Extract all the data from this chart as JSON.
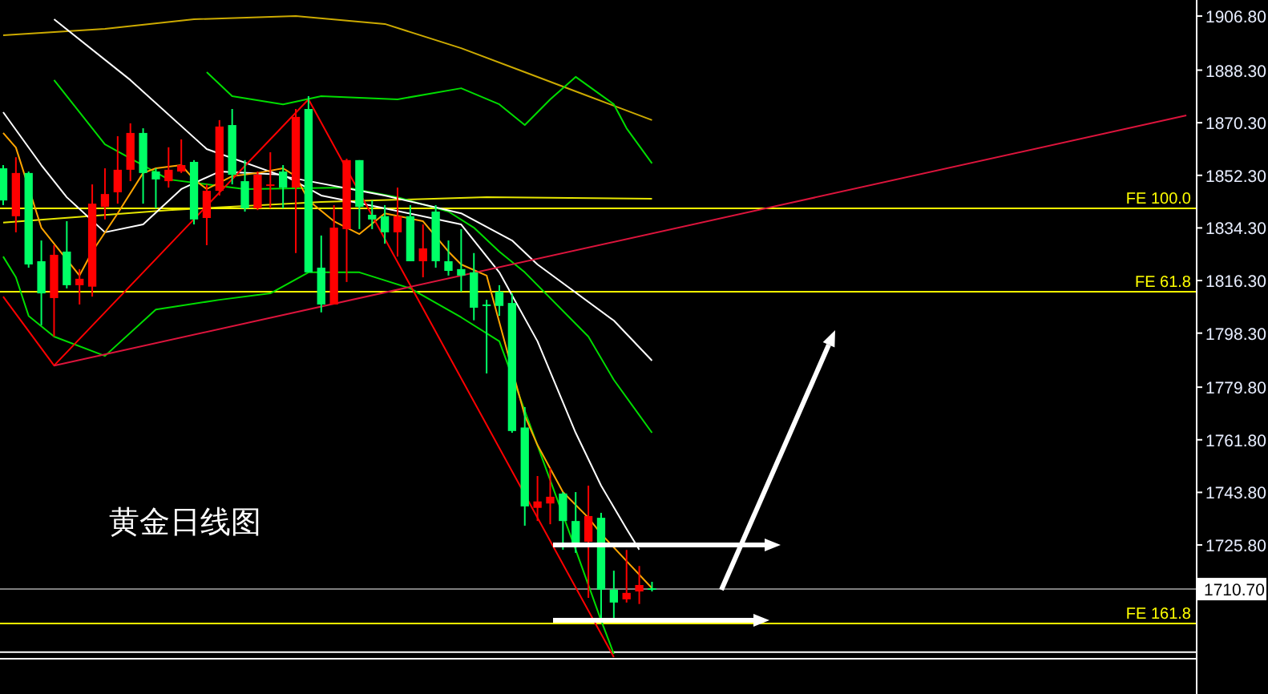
{
  "chart_data": {
    "type": "candlestick",
    "annotations": [
      "黄金日线图"
    ],
    "categories": [
      null,
      null,
      null,
      null,
      null,
      null,
      null,
      null,
      null,
      null,
      null,
      null,
      null,
      null,
      null,
      null,
      null,
      null,
      null,
      null,
      null,
      null,
      null,
      null,
      null,
      null,
      null,
      null,
      null,
      null,
      null,
      null,
      null,
      null,
      null,
      null,
      null,
      null,
      null,
      null,
      null,
      null,
      null,
      null,
      null,
      null,
      null,
      null,
      null,
      null,
      null,
      null,
      null,
      null,
      null,
      null,
      null,
      null,
      null,
      null,
      null,
      null,
      null,
      null,
      null,
      null,
      null,
      null,
      null,
      null,
      null,
      null,
      null,
      null,
      null,
      null,
      null,
      null,
      null,
      null,
      null,
      null,
      null,
      null,
      null,
      null,
      null,
      null,
      null,
      null,
      null,
      null,
      null,
      null
    ],
    "ohlc": [
      [
        1854.7,
        1855.8,
        1842.1,
        1843.7
      ],
      [
        1838.3,
        1858.5,
        1832.8,
        1853.1
      ],
      [
        1853.1,
        1853.6,
        1820.7,
        1821.8
      ],
      [
        1822.9,
        1830.0,
        1801.0,
        1811.9
      ],
      [
        1810.3,
        1828.4,
        1797.1,
        1825.1
      ],
      [
        1826.2,
        1836.6,
        1813.6,
        1814.7
      ],
      [
        1814.7,
        1820.2,
        1808.1,
        1816.9
      ],
      [
        1814.2,
        1849.2,
        1810.8,
        1842.6
      ],
      [
        1841.5,
        1854.7,
        1837.2,
        1845.9
      ],
      [
        1846.5,
        1865.7,
        1842.6,
        1854.2
      ],
      [
        1854.2,
        1870.1,
        1850.3,
        1866.8
      ],
      [
        1866.8,
        1868.4,
        1842.6,
        1853.1
      ],
      [
        1853.6,
        1854.7,
        1841.0,
        1850.9
      ],
      [
        1850.3,
        1861.9,
        1848.1,
        1854.2
      ],
      [
        1853.6,
        1864.6,
        1853.1,
        1855.8
      ],
      [
        1856.9,
        1857.5,
        1835.5,
        1837.2
      ],
      [
        1837.7,
        1849.2,
        1828.4,
        1847.0
      ],
      [
        1847.0,
        1871.2,
        1845.4,
        1869.0
      ],
      [
        1869.5,
        1875.0,
        1849.2,
        1852.5
      ],
      [
        1850.3,
        1857.5,
        1839.9,
        1841.0
      ],
      [
        1841.0,
        1853.6,
        1840.4,
        1852.5
      ],
      [
        1848.7,
        1860.2,
        1841.0,
        1849.2
      ],
      [
        1853.6,
        1855.8,
        1841.0,
        1848.1
      ],
      [
        1848.1,
        1875.0,
        1825.7,
        1872.3
      ],
      [
        1875.0,
        1879.4,
        1819.1,
        1819.1
      ],
      [
        1820.7,
        1831.7,
        1805.4,
        1808.1
      ],
      [
        1808.1,
        1842.1,
        1808.1,
        1834.4
      ],
      [
        1833.9,
        1858.0,
        1815.8,
        1857.5
      ],
      [
        1857.5,
        1857.5,
        1833.9,
        1841.5
      ],
      [
        1838.8,
        1843.7,
        1833.9,
        1837.2
      ],
      [
        1838.3,
        1842.1,
        1828.9,
        1832.8
      ],
      [
        1832.8,
        1848.1,
        1824.5,
        1838.3
      ],
      [
        1838.3,
        1842.1,
        1822.9,
        1822.9
      ],
      [
        1822.9,
        1835.5,
        1817.4,
        1827.3
      ],
      [
        1839.9,
        1842.1,
        1820.7,
        1822.9
      ],
      [
        1822.9,
        1830.0,
        1818.0,
        1819.6
      ],
      [
        1820.2,
        1833.9,
        1812.5,
        1818.0
      ],
      [
        1819.1,
        1825.7,
        1802.7,
        1807.0
      ],
      [
        1808.1,
        1809.7,
        1784.5,
        1807.6
      ],
      [
        1812.5,
        1814.7,
        1804.2,
        1807.6
      ],
      [
        1808.6,
        1811.9,
        1764.2,
        1764.8
      ],
      [
        1766.0,
        1773.0,
        1732.4,
        1739.0
      ],
      [
        1738.5,
        1749.4,
        1734.0,
        1740.7
      ],
      [
        1740.0,
        1752.1,
        1732.9,
        1742.3
      ],
      [
        1743.4,
        1743.9,
        1724.2,
        1734.0
      ],
      [
        1734.0,
        1743.9,
        1723.1,
        1725.8
      ],
      [
        1726.9,
        1746.1,
        1707.7,
        1735.7
      ],
      [
        1735.1,
        1736.8,
        1699.5,
        1710.5
      ],
      [
        1710.5,
        1717.0,
        1699.5,
        1706.1
      ],
      [
        1707.2,
        1724.1,
        1706.1,
        1709.4
      ],
      [
        1709.9,
        1718.6,
        1705.6,
        1712.1
      ],
      [
        1711.0,
        1713.2,
        1709.9,
        1710.5
      ],
      null,
      null,
      null,
      null,
      null,
      null,
      null,
      null,
      null,
      null,
      null,
      null,
      null,
      null,
      null,
      null,
      null,
      null,
      null,
      null,
      null,
      null,
      null,
      null,
      null,
      null,
      null,
      null,
      null,
      null,
      null,
      null,
      null,
      null,
      null,
      null,
      null,
      null,
      null,
      null,
      null,
      null
    ],
    "colors": [
      "#00ff66",
      "#ff0000",
      "#00ff66",
      "#00ff66",
      "#ff0000",
      "#00ff66",
      "#ff0000",
      "#ff0000",
      "#ff0000",
      "#ff0000",
      "#ff0000",
      "#00ff66",
      "#00ff66",
      "#ff0000",
      "#ff0000",
      "#00ff66",
      "#ff0000",
      "#ff0000",
      "#00ff66",
      "#00ff66",
      "#ff0000",
      "#ff0000",
      "#00ff66",
      "#ff0000",
      "#00ff66",
      "#00ff66",
      "#ff0000",
      "#ff0000",
      "#00ff66",
      "#00ff66",
      "#00ff66",
      "#ff0000",
      "#00ff66",
      "#ff0000",
      "#00ff66",
      "#00ff66",
      "#00ff66",
      "#00ff66",
      "#00ff66",
      "#00ff66",
      "#00ff66",
      "#00ff66",
      "#ff0000",
      "#ff0000",
      "#00ff66",
      "#00ff66",
      "#ff0000",
      "#00ff66",
      "#00ff66",
      "#ff0000",
      "#ff0000",
      "#00ff66",
      null,
      null,
      null,
      null,
      null,
      null,
      null,
      null,
      null,
      null,
      null,
      null,
      null,
      null,
      null,
      null,
      null,
      null,
      null,
      null,
      null,
      null,
      null,
      null,
      null,
      null,
      null,
      null,
      null,
      null,
      null,
      null,
      null,
      null,
      null,
      null,
      null,
      null,
      null,
      null,
      null,
      null
    ],
    "series": [
      {
        "type": "line",
        "color": "#ccaa00",
        "values": [
          1900.2,
          null,
          null,
          null,
          null,
          null,
          null,
          null,
          1902.4,
          null,
          null,
          null,
          null,
          null,
          null,
          1905.7,
          null,
          null,
          null,
          null,
          null,
          null,
          null,
          1906.8,
          null,
          null,
          null,
          null,
          null,
          null,
          1904.1,
          null,
          null,
          null,
          null,
          null,
          1895.8,
          null,
          null,
          null,
          null,
          1887.6,
          null,
          null,
          null,
          null,
          1879.4,
          null,
          null,
          null,
          null,
          1871.2,
          null,
          null,
          null,
          null,
          null,
          null,
          null,
          null,
          null,
          null,
          null,
          null,
          null,
          null,
          null,
          null,
          null,
          null,
          null,
          null,
          null,
          null,
          null,
          null,
          null,
          null,
          null,
          null,
          null,
          null,
          null,
          null,
          null,
          null,
          null,
          null,
          null,
          null,
          null,
          null,
          null,
          null
        ]
      },
      {
        "type": "line",
        "color": "#e6e600",
        "values": [
          1836.1,
          null,
          null,
          null,
          null,
          null,
          null,
          null,
          null,
          null,
          null,
          null,
          null,
          1840.4,
          null,
          null,
          null,
          null,
          null,
          null,
          null,
          null,
          null,
          null,
          null,
          1843.2,
          null,
          null,
          null,
          null,
          null,
          null,
          null,
          null,
          null,
          null,
          null,
          null,
          1844.8,
          null,
          null,
          null,
          null,
          null,
          null,
          null,
          null,
          null,
          null,
          null,
          null,
          1844.3,
          null,
          null,
          null,
          null,
          null,
          null,
          null,
          null,
          null,
          null,
          null,
          null,
          null,
          null,
          null,
          null,
          null,
          null,
          null,
          null,
          null,
          null,
          null,
          null,
          null,
          null,
          null,
          null,
          null,
          null,
          null,
          null,
          null,
          null,
          null,
          null,
          null,
          null,
          null,
          null,
          null,
          null
        ]
      },
      {
        "type": "line",
        "color": "#00dd00",
        "values": [
          null,
          null,
          null,
          null,
          null,
          null,
          null,
          null,
          null,
          null,
          null,
          null,
          null,
          null,
          null,
          null,
          1887.6,
          null,
          1879.4,
          null,
          null,
          null,
          1876.6,
          null,
          null,
          1879.4,
          null,
          null,
          null,
          null,
          null,
          1878.3,
          null,
          null,
          null,
          null,
          1882.1,
          null,
          null,
          1876.6,
          null,
          1869.5,
          null,
          1878.3,
          null,
          1886.0,
          null,
          null,
          1876.6,
          1868.4,
          null,
          1856.4,
          null,
          null,
          null,
          null,
          null,
          null,
          null,
          null,
          null,
          null,
          null,
          null,
          null,
          null,
          null,
          null,
          null,
          null,
          null,
          null,
          null,
          null,
          null,
          null,
          null,
          null,
          null,
          null,
          null,
          null,
          null,
          null,
          null,
          null,
          null,
          null,
          null,
          null,
          null,
          null,
          null,
          null
        ]
      },
      {
        "type": "line",
        "color": "#00dd00",
        "values": [
          null,
          null,
          null,
          null,
          1884.9,
          null,
          null,
          null,
          1862.9,
          null,
          null,
          null,
          null,
          1850.9,
          null,
          null,
          null,
          null,
          null,
          1847.6,
          null,
          null,
          null,
          null,
          null,
          null,
          null,
          1848.1,
          null,
          null,
          null,
          1844.8,
          null,
          null,
          null,
          1839.9,
          null,
          1834.4,
          null,
          1826.2,
          null,
          1819.1,
          null,
          null,
          null,
          null,
          1797.1,
          null,
          1782.3,
          null,
          null,
          1764.2,
          null,
          null,
          null,
          null,
          null,
          null,
          null,
          null,
          null,
          null,
          null,
          null,
          null,
          null,
          null,
          null,
          null,
          null,
          null,
          null,
          null,
          null,
          null,
          null,
          null,
          null,
          null,
          null,
          null,
          null,
          null,
          null,
          null,
          null,
          null,
          null,
          null,
          null,
          null,
          null,
          null,
          null
        ]
      },
      {
        "type": "line",
        "color": "#00dd00",
        "values": [
          1824.5,
          1817.4,
          1804.2,
          null,
          1797.1,
          null,
          null,
          null,
          1790.5,
          null,
          null,
          null,
          1806.4,
          null,
          null,
          null,
          null,
          1809.7,
          null,
          null,
          null,
          1811.9,
          null,
          null,
          1819.1,
          null,
          null,
          null,
          1819.1,
          null,
          null,
          null,
          1813.6,
          null,
          null,
          null,
          1803.7,
          null,
          null,
          1795.5,
          null,
          null,
          null,
          null,
          null,
          1724.2,
          null,
          1700.0,
          1688.5,
          null,
          null,
          null,
          null,
          null,
          null,
          null,
          null,
          null,
          null,
          null,
          null,
          null,
          null,
          null,
          null,
          null,
          null,
          null,
          null,
          null,
          null,
          null,
          null,
          null,
          null,
          null,
          null,
          null,
          null,
          null,
          null,
          null,
          null,
          null,
          null,
          null,
          null,
          null,
          null,
          null,
          null,
          null,
          null,
          null
        ]
      },
      {
        "type": "line",
        "color": "#ffffff",
        "values": [
          null,
          null,
          null,
          null,
          1905.7,
          null,
          null,
          null,
          null,
          null,
          1884.9,
          null,
          null,
          null,
          null,
          null,
          1861.3,
          null,
          null,
          null,
          null,
          null,
          1852.0,
          null,
          null,
          null,
          null,
          null,
          null,
          null,
          1845.4,
          null,
          null,
          null,
          null,
          null,
          1839.3,
          null,
          null,
          null,
          1830.0,
          null,
          1821.8,
          null,
          null,
          null,
          null,
          null,
          1802.6,
          null,
          null,
          1788.9,
          null,
          null,
          null,
          null,
          null,
          null,
          null,
          null,
          null,
          null,
          null,
          null,
          null,
          null,
          null,
          null,
          null,
          null,
          null,
          null,
          null,
          null,
          null,
          null,
          null,
          null,
          null,
          null,
          null,
          null,
          null,
          null,
          null,
          null,
          null,
          null,
          null,
          null,
          null,
          null,
          null,
          null
        ]
      },
      {
        "type": "line",
        "color": "#ffffff",
        "values": [
          1873.9,
          null,
          null,
          1855.8,
          null,
          1844.8,
          null,
          null,
          1832.8,
          null,
          null,
          1835.5,
          null,
          null,
          1847.6,
          null,
          null,
          1853.6,
          null,
          null,
          null,
          null,
          1852.5,
          null,
          null,
          1845.4,
          null,
          null,
          null,
          null,
          1841.0,
          null,
          null,
          null,
          null,
          null,
          1835.5,
          null,
          null,
          1819.1,
          null,
          null,
          1795.5,
          null,
          null,
          1764.2,
          null,
          1746.1,
          null,
          1731.3,
          1724.2,
          null,
          null,
          null,
          null,
          null,
          null,
          null,
          null,
          null,
          null,
          null,
          null,
          null,
          null,
          null,
          null,
          null,
          null,
          null,
          null,
          null,
          null,
          null,
          null,
          null,
          null,
          null,
          null,
          null,
          null,
          null,
          null,
          null,
          null,
          null,
          null,
          null,
          null,
          null,
          null,
          null,
          null,
          null
        ]
      },
      {
        "type": "line",
        "color": "#ffa500",
        "values": [
          1866.8,
          1861.8,
          null,
          1834.4,
          null,
          null,
          1818.0,
          1826.2,
          null,
          1839.3,
          null,
          1853.1,
          1854.7,
          null,
          1855.8,
          1850.9,
          1847.6,
          null,
          1852.0,
          null,
          1853.1,
          null,
          1854.7,
          1852.0,
          1843.7,
          null,
          1836.6,
          null,
          1832.2,
          null,
          1839.3,
          null,
          null,
          1836.6,
          null,
          1826.2,
          1821.8,
          null,
          1818.0,
          null,
          null,
          1770.0,
          1760.0,
          null,
          1743.9,
          null,
          1735.1,
          1729.6,
          null,
          1720.3,
          null,
          1711.0,
          null,
          null,
          null,
          null,
          null,
          null,
          null,
          null,
          null,
          null,
          null,
          null,
          null,
          null,
          null,
          null,
          null,
          null,
          null,
          null,
          null,
          null,
          null,
          null,
          null,
          null,
          null,
          null,
          null,
          null,
          null,
          null,
          null,
          null,
          null,
          null,
          null,
          null,
          null,
          null,
          null,
          null
        ]
      },
      {
        "type": "line",
        "color": "#ff0000",
        "values": [
          1810.8,
          null,
          null,
          null,
          1787.2,
          null,
          null,
          null,
          null,
          null,
          null,
          null,
          null,
          null,
          null,
          null,
          null,
          null,
          null,
          null,
          null,
          null,
          null,
          null,
          1878.3,
          null,
          null,
          null,
          null,
          null,
          null,
          null,
          null,
          null,
          null,
          null,
          null,
          null,
          null,
          null,
          null,
          null,
          null,
          null,
          null,
          null,
          null,
          null,
          1687.4,
          null,
          null,
          null,
          null,
          null,
          null,
          null,
          null,
          null,
          null,
          null,
          null,
          null,
          null,
          null,
          null,
          null,
          null,
          null,
          null,
          null,
          null,
          null,
          null,
          null,
          null,
          null,
          null,
          null,
          null,
          null,
          null,
          null,
          null,
          null,
          null,
          null,
          null,
          null,
          null,
          null,
          null,
          null,
          null,
          null
        ]
      },
      {
        "type": "line",
        "color": "#dc143c",
        "values": [
          null,
          null,
          null,
          null,
          1787.2,
          null,
          null,
          null,
          null,
          null,
          null,
          null,
          null,
          null,
          null,
          null,
          null,
          null,
          null,
          null,
          null,
          null,
          null,
          null,
          null,
          null,
          null,
          null,
          null,
          null,
          null,
          null,
          null,
          null,
          null,
          null,
          null,
          null,
          null,
          null,
          null,
          null,
          null,
          null,
          null,
          null,
          null,
          null,
          null,
          null,
          null,
          null,
          null,
          null,
          null,
          null,
          null,
          null,
          null,
          null,
          null,
          null,
          null,
          null,
          null,
          null,
          null,
          null,
          null,
          null,
          null,
          null,
          null,
          null,
          null,
          null,
          null,
          null,
          null,
          null,
          null,
          null,
          null,
          null,
          null,
          null,
          null,
          null,
          null,
          null,
          null,
          null,
          null,
          1872.8
        ]
      }
    ],
    "ylim": [
      1674.8,
      1912.3
    ],
    "yticks": [
      {
        "value": 1906.8,
        "label": "1906.80"
      },
      {
        "value": 1888.3,
        "label": "1888.30"
      },
      {
        "value": 1870.3,
        "label": "1870.30"
      },
      {
        "value": 1852.3,
        "label": "1852.30"
      },
      {
        "value": 1834.3,
        "label": "1834.30"
      },
      {
        "value": 1816.3,
        "label": "1816.30"
      },
      {
        "value": 1798.3,
        "label": "1798.30"
      },
      {
        "value": 1779.8,
        "label": "1779.80"
      },
      {
        "value": 1761.8,
        "label": "1761.80"
      },
      {
        "value": 1743.8,
        "label": "1743.80"
      },
      {
        "value": 1725.8,
        "label": "1725.80"
      }
    ],
    "tick_labels": "y",
    "ref_lines": [
      {
        "axis": "y",
        "value": 1841.0,
        "label": "FE 100.0",
        "color": "#ffff00"
      },
      {
        "axis": "y",
        "value": 1812.5,
        "label": "FE 61.8",
        "color": "#ffff00"
      },
      {
        "axis": "y",
        "value": 1698.9,
        "label": "FE 161.8",
        "color": "#ffff00"
      },
      {
        "axis": "y",
        "value": 1710.7,
        "label": "1710.70",
        "color": "#808080"
      },
      {
        "axis": "y",
        "value": 1689.1,
        "color": "#ffffff"
      },
      {
        "axis": "y",
        "value": 1686.9,
        "color": "#ffffff"
      }
    ]
  }
}
